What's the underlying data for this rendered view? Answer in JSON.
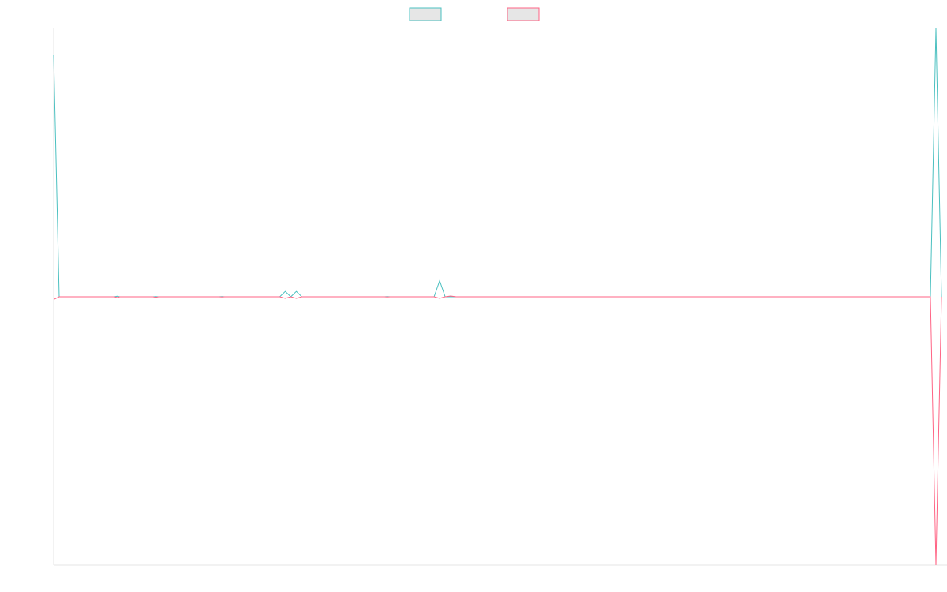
{
  "chart_data": {
    "type": "line",
    "title": "",
    "xlabel": "",
    "ylabel": "",
    "x_range": [
      0,
      160
    ],
    "ylim": [
      -1,
      1
    ],
    "grid": false,
    "legend": {
      "placement": "top-center"
    },
    "series": [
      {
        "color": "#4bc0c0",
        "legend_fill": "#e6e6e6",
        "points": [
          [
            0,
            0.9
          ],
          [
            1,
            0
          ],
          [
            11,
            0
          ],
          [
            11.5,
            0.002
          ],
          [
            12,
            0
          ],
          [
            18,
            0
          ],
          [
            18.5,
            0.001
          ],
          [
            19,
            0
          ],
          [
            30,
            0
          ],
          [
            30.5,
            0.001
          ],
          [
            31,
            0
          ],
          [
            41,
            0
          ],
          [
            42,
            0.02
          ],
          [
            43,
            0
          ],
          [
            44,
            0.02
          ],
          [
            45,
            0
          ],
          [
            60,
            0
          ],
          [
            60.5,
            0.001
          ],
          [
            61,
            0
          ],
          [
            69,
            0
          ],
          [
            70,
            0.06
          ],
          [
            71,
            0
          ],
          [
            159,
            0
          ],
          [
            160,
            1
          ],
          [
            161,
            0
          ]
        ]
      },
      {
        "color": "#ff6384",
        "legend_fill": "#e6e6e6",
        "points": [
          [
            0,
            -0.01
          ],
          [
            1,
            0
          ],
          [
            11,
            0
          ],
          [
            11.5,
            -0.003
          ],
          [
            12,
            0
          ],
          [
            18,
            0
          ],
          [
            18.5,
            -0.002
          ],
          [
            19,
            0
          ],
          [
            30,
            0
          ],
          [
            30.5,
            -0.001
          ],
          [
            31,
            0
          ],
          [
            41,
            0
          ],
          [
            42,
            -0.006
          ],
          [
            43,
            0
          ],
          [
            44,
            -0.006
          ],
          [
            45,
            0
          ],
          [
            60,
            0
          ],
          [
            60.5,
            -0.001
          ],
          [
            61,
            0
          ],
          [
            69,
            0
          ],
          [
            70,
            -0.006
          ],
          [
            71,
            0
          ],
          [
            72,
            0.003
          ],
          [
            73,
            0
          ],
          [
            159,
            0
          ],
          [
            160,
            -1
          ],
          [
            161,
            0
          ]
        ]
      }
    ]
  }
}
